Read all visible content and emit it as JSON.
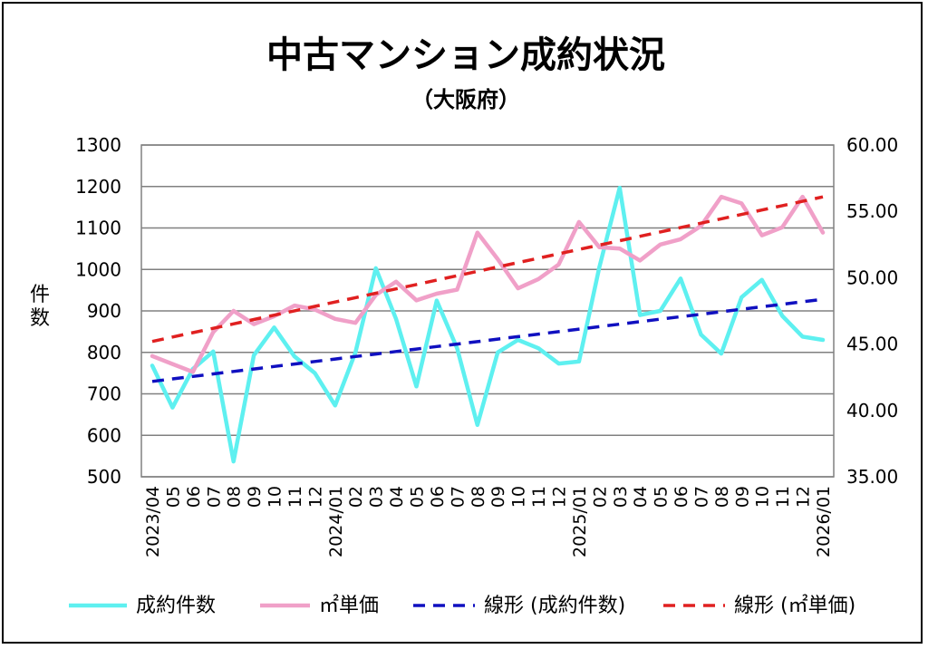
{
  "chart_data": {
    "type": "line",
    "title": "中古マンション成約状況",
    "subtitle": "（大阪府）",
    "ylabel_left": "件数",
    "x": [
      "2023/04",
      "05",
      "06",
      "07",
      "08",
      "09",
      "10",
      "11",
      "12",
      "2024/01",
      "02",
      "03",
      "04",
      "05",
      "06",
      "07",
      "08",
      "09",
      "10",
      "11",
      "12",
      "2025/01",
      "02",
      "03",
      "04",
      "05",
      "06",
      "07",
      "08",
      "09",
      "10",
      "11",
      "12",
      "2026/01"
    ],
    "y_left": {
      "ylim": [
        500,
        1300
      ],
      "ticks": [
        500,
        600,
        700,
        800,
        900,
        1000,
        1100,
        1200,
        1300
      ],
      "tick_labels": [
        "500",
        "600",
        "700",
        "800",
        "900",
        "1000",
        "1100",
        "1200",
        "1300"
      ]
    },
    "y_right": {
      "ylim": [
        35,
        60
      ],
      "ticks": [
        35,
        40,
        45,
        50,
        55,
        60
      ],
      "tick_labels": [
        "35.00",
        "40.00",
        "45.00",
        "50.00",
        "55.00",
        "60.00"
      ]
    },
    "grid": true,
    "legend_position": "bottom",
    "series": [
      {
        "name": "成約件数",
        "axis": "left",
        "style": "solid",
        "color": "#5ef0f0",
        "values": [
          768,
          667,
          760,
          802,
          537,
          793,
          860,
          790,
          750,
          672,
          800,
          1003,
          880,
          718,
          925,
          810,
          625,
          800,
          830,
          810,
          773,
          778,
          1005,
          1197,
          890,
          900,
          978,
          843,
          797,
          933,
          975,
          888,
          838,
          830
        ]
      },
      {
        "name": "㎡単価",
        "axis": "right",
        "style": "solid",
        "color": "#f0a0c8",
        "values": [
          44.1,
          43.5,
          42.9,
          45.9,
          47.5,
          46.5,
          47.1,
          47.9,
          47.6,
          46.9,
          46.6,
          48.7,
          49.7,
          48.3,
          48.8,
          49.1,
          53.4,
          51.4,
          49.2,
          49.9,
          51.0,
          54.2,
          52.3,
          52.2,
          51.3,
          52.5,
          52.9,
          53.9,
          56.1,
          55.6,
          53.2,
          53.8,
          56.1,
          53.4
        ]
      },
      {
        "name": "線形 (成約件数)",
        "axis": "left",
        "style": "dashed",
        "color": "#1010c0",
        "values": [
          730,
          736,
          742,
          748,
          754,
          760,
          766,
          772,
          778,
          784,
          790,
          796,
          802,
          808,
          814,
          820,
          826,
          832,
          838,
          844,
          850,
          856,
          862,
          868,
          874,
          880,
          886,
          892,
          898,
          904,
          910,
          916,
          922,
          928
        ]
      },
      {
        "name": "線形 (㎡単価)",
        "axis": "right",
        "style": "dashed",
        "color": "#e02020",
        "values": [
          45.2,
          45.53,
          45.86,
          46.19,
          46.52,
          46.85,
          47.18,
          47.51,
          47.84,
          48.17,
          48.5,
          48.83,
          49.16,
          49.49,
          49.82,
          50.15,
          50.48,
          50.81,
          51.14,
          51.47,
          51.8,
          52.13,
          52.46,
          52.79,
          53.12,
          53.45,
          53.78,
          54.11,
          54.44,
          54.77,
          55.1,
          55.43,
          55.76,
          56.09
        ]
      }
    ]
  }
}
